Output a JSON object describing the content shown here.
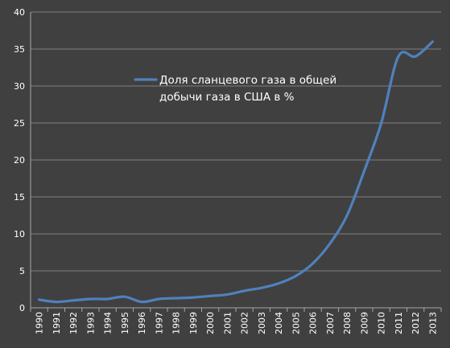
{
  "chart_data": {
    "type": "line",
    "title": "",
    "xlabel": "",
    "ylabel": "",
    "ylim": [
      0,
      40
    ],
    "yticks": [
      0,
      5,
      10,
      15,
      20,
      25,
      30,
      35,
      40
    ],
    "grid": true,
    "legend_position": "center-left",
    "x": [
      "1990",
      "1991",
      "1992",
      "1993",
      "1994",
      "1995",
      "1996",
      "1997",
      "1998",
      "1999",
      "2000",
      "2001",
      "2002",
      "2003",
      "2004",
      "2005",
      "2006",
      "2007",
      "2008",
      "2009",
      "2010",
      "2011",
      "2012",
      "2013"
    ],
    "series": [
      {
        "name": "Доля сланцевого газа в общей добычи газа в США в %",
        "legend_lines": [
          "Доля сланцевого газа в общей",
          "добычи газа в США в %"
        ],
        "color": "#4F81BD",
        "values": [
          1.1,
          0.8,
          1.0,
          1.2,
          1.2,
          1.5,
          0.8,
          1.2,
          1.3,
          1.4,
          1.6,
          1.8,
          2.3,
          2.7,
          3.3,
          4.3,
          6.0,
          8.7,
          12.5,
          18.5,
          25.0,
          34.0,
          34.0,
          36.0
        ]
      }
    ],
    "colors": {
      "background": "#404040",
      "gridline": "#7f7f7f",
      "axis": "#a6a6a6",
      "text": "#ffffff"
    }
  }
}
